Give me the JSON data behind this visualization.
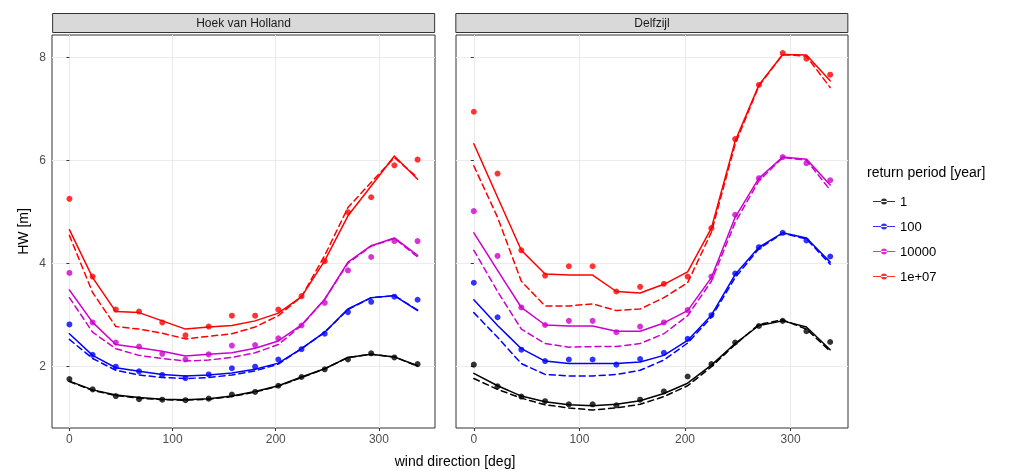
{
  "chart_data": [
    {
      "type": "line",
      "title": "Hoek van Holland",
      "legend": "right",
      "xlabel": "wind direction [deg]",
      "ylabel": "HW [m]",
      "x": [
        0,
        22.5,
        45,
        67.5,
        90,
        112.5,
        135,
        157.5,
        180,
        202.5,
        225,
        247.5,
        270,
        292.5,
        315,
        337.5
      ],
      "xlim": [
        -16.875,
        354.375
      ],
      "xticks": [
        0,
        100,
        200,
        300
      ],
      "ylim": [
        0.8,
        8.43
      ],
      "yticks": [
        2,
        4,
        6,
        8
      ],
      "grid": true,
      "series": [
        {
          "name": "1",
          "color": "#000000",
          "type": "scatter",
          "marker": "circle",
          "values": [
            1.75,
            1.55,
            1.42,
            1.36,
            1.35,
            1.34,
            1.37,
            1.45,
            1.5,
            1.62,
            1.79,
            1.94,
            2.13,
            2.25,
            2.17,
            2.04
          ]
        },
        {
          "color": "#000000",
          "marker": "none",
          "line_style": "solid",
          "values": [
            1.71,
            1.54,
            1.44,
            1.39,
            1.36,
            1.35,
            1.37,
            1.42,
            1.51,
            1.62,
            1.79,
            1.95,
            2.17,
            2.23,
            2.18,
            2.01
          ]
        },
        {
          "color": "#000000",
          "marker": "none",
          "line_style": "dashed",
          "values": [
            1.7,
            1.53,
            1.43,
            1.38,
            1.35,
            1.34,
            1.36,
            1.41,
            1.5,
            1.61,
            1.78,
            1.95,
            2.17,
            2.23,
            2.18,
            2
          ]
        },
        {
          "name": "100",
          "color": "#0000ff",
          "type": "scatter",
          "marker": "circle",
          "values": [
            2.81,
            2.22,
            1.99,
            1.9,
            1.83,
            1.77,
            1.84,
            1.96,
            1.99,
            2.13,
            2.33,
            2.63,
            3.05,
            3.25,
            3.35,
            3.29
          ]
        },
        {
          "color": "#0000ff",
          "marker": "none",
          "line_style": "solid",
          "values": [
            2.63,
            2.21,
            1.97,
            1.9,
            1.84,
            1.81,
            1.83,
            1.87,
            1.94,
            2.06,
            2.34,
            2.66,
            3.11,
            3.33,
            3.37,
            3.08
          ]
        },
        {
          "color": "#0000ff",
          "marker": "none",
          "line_style": "dashed",
          "values": [
            2.52,
            2.15,
            1.92,
            1.83,
            1.78,
            1.76,
            1.78,
            1.83,
            1.91,
            2.04,
            2.34,
            2.66,
            3.1,
            3.33,
            3.37,
            3.09
          ]
        },
        {
          "name": "10000",
          "color": "#cd00cd",
          "type": "scatter",
          "marker": "circle",
          "values": [
            3.81,
            2.85,
            2.46,
            2.38,
            2.24,
            2.13,
            2.23,
            2.4,
            2.41,
            2.54,
            2.79,
            3.23,
            3.86,
            4.12,
            4.43,
            4.43
          ]
        },
        {
          "color": "#cd00cd",
          "marker": "none",
          "line_style": "solid",
          "values": [
            3.48,
            2.85,
            2.42,
            2.36,
            2.29,
            2.2,
            2.23,
            2.26,
            2.35,
            2.49,
            2.8,
            3.3,
            4.02,
            4.34,
            4.49,
            4.15
          ]
        },
        {
          "color": "#cd00cd",
          "marker": "none",
          "line_style": "dashed",
          "values": [
            3.33,
            2.66,
            2.34,
            2.21,
            2.15,
            2.1,
            2.12,
            2.17,
            2.26,
            2.42,
            2.79,
            3.3,
            4,
            4.33,
            4.48,
            4.12
          ]
        },
        {
          "name": "1e+07",
          "color": "#ff0000",
          "type": "scatter",
          "marker": "circle",
          "values": [
            5.25,
            3.74,
            3.1,
            3.06,
            2.85,
            2.6,
            2.77,
            2.98,
            2.98,
            3.1,
            3.36,
            4.04,
            4.99,
            5.28,
            5.9,
            6.01
          ]
        },
        {
          "color": "#ff0000",
          "marker": "none",
          "line_style": "solid",
          "values": [
            4.65,
            3.72,
            3.06,
            3.04,
            2.88,
            2.72,
            2.76,
            2.79,
            2.88,
            3.03,
            3.35,
            4.05,
            4.92,
            5.5,
            6.08,
            5.63
          ]
        },
        {
          "color": "#ff0000",
          "marker": "none",
          "line_style": "dashed",
          "values": [
            4.54,
            3.43,
            2.77,
            2.72,
            2.64,
            2.53,
            2.58,
            2.63,
            2.76,
            2.98,
            3.35,
            4.15,
            5.08,
            5.57,
            6.05,
            5.66
          ]
        }
      ]
    },
    {
      "type": "line",
      "title": "Delfzijl",
      "legend": "right",
      "legend_title": "return period [year]",
      "tick_labels": "x",
      "x": [
        0,
        22.5,
        45,
        67.5,
        90,
        112.5,
        135,
        157.5,
        180,
        202.5,
        225,
        247.5,
        270,
        292.5,
        315,
        337.5
      ],
      "xlim": [
        -16.875,
        354.375
      ],
      "xticks": [
        0,
        100,
        200,
        300
      ],
      "ylim": [
        0.8,
        8.43
      ],
      "yticks": [
        2,
        4,
        6,
        8
      ],
      "grid": true,
      "series": [
        {
          "name": "1",
          "color": "#000000",
          "type": "scatter",
          "marker": "circle",
          "values": [
            2.03,
            1.61,
            1.41,
            1.32,
            1.26,
            1.26,
            1.24,
            1.35,
            1.51,
            1.8,
            2.04,
            2.46,
            2.78,
            2.88,
            2.68,
            2.47
          ]
        },
        {
          "color": "#000000",
          "marker": "none",
          "line_style": "solid",
          "values": [
            1.86,
            1.62,
            1.42,
            1.31,
            1.25,
            1.23,
            1.26,
            1.33,
            1.47,
            1.67,
            2.02,
            2.44,
            2.79,
            2.88,
            2.76,
            2.32
          ]
        },
        {
          "color": "#000000",
          "marker": "none",
          "line_style": "dashed",
          "values": [
            1.76,
            1.55,
            1.38,
            1.25,
            1.19,
            1.15,
            1.19,
            1.26,
            1.41,
            1.62,
            1.99,
            2.42,
            2.81,
            2.9,
            2.72,
            2.29
          ]
        },
        {
          "name": "100",
          "color": "#0000ff",
          "type": "scatter",
          "marker": "circle",
          "values": [
            3.62,
            2.95,
            2.32,
            2.1,
            2.13,
            2.13,
            2.03,
            2.14,
            2.26,
            2.53,
            2.99,
            3.8,
            4.31,
            4.59,
            4.44,
            4.13
          ]
        },
        {
          "color": "#0000ff",
          "marker": "none",
          "line_style": "solid",
          "values": [
            3.29,
            2.79,
            2.34,
            2.1,
            2.05,
            2.05,
            2.05,
            2.08,
            2.21,
            2.5,
            2.99,
            3.78,
            4.31,
            4.59,
            4.49,
            4.02
          ]
        },
        {
          "color": "#0000ff",
          "marker": "none",
          "line_style": "dashed",
          "values": [
            3.04,
            2.56,
            2.05,
            1.84,
            1.81,
            1.81,
            1.84,
            1.92,
            2.12,
            2.45,
            2.95,
            3.72,
            4.28,
            4.58,
            4.47,
            3.98
          ]
        },
        {
          "name": "10000",
          "color": "#cd00cd",
          "type": "scatter",
          "marker": "circle",
          "values": [
            5.01,
            4.14,
            3.14,
            2.8,
            2.88,
            2.88,
            2.66,
            2.77,
            2.85,
            3.09,
            3.74,
            4.94,
            5.65,
            6.06,
            5.94,
            5.61
          ]
        },
        {
          "color": "#cd00cd",
          "marker": "none",
          "line_style": "solid",
          "values": [
            4.59,
            3.86,
            3.14,
            2.8,
            2.78,
            2.78,
            2.68,
            2.68,
            2.84,
            3.08,
            3.72,
            4.89,
            5.65,
            6.06,
            6.02,
            5.52
          ]
        },
        {
          "color": "#cd00cd",
          "marker": "none",
          "line_style": "dashed",
          "values": [
            4.25,
            3.45,
            2.72,
            2.44,
            2.37,
            2.38,
            2.38,
            2.44,
            2.63,
            2.98,
            3.65,
            4.79,
            5.6,
            6.05,
            6,
            5.42
          ]
        },
        {
          "name": "1e+07",
          "color": "#ff0000",
          "type": "scatter",
          "marker": "circle",
          "values": [
            6.94,
            5.74,
            4.25,
            3.76,
            3.94,
            3.94,
            3.45,
            3.54,
            3.6,
            3.74,
            4.68,
            6.41,
            7.46,
            8.08,
            7.97,
            7.66
          ]
        },
        {
          "color": "#ff0000",
          "marker": "none",
          "line_style": "solid",
          "values": [
            6.32,
            5.28,
            4.25,
            3.79,
            3.77,
            3.77,
            3.45,
            3.42,
            3.59,
            3.83,
            4.68,
            6.37,
            7.46,
            8.05,
            8.04,
            7.54
          ]
        },
        {
          "color": "#ff0000",
          "marker": "none",
          "line_style": "dashed",
          "values": [
            5.89,
            4.89,
            3.65,
            3.17,
            3.17,
            3.21,
            3.08,
            3.11,
            3.33,
            3.62,
            4.6,
            6.31,
            7.44,
            8.05,
            8.02,
            7.41
          ]
        }
      ]
    }
  ]
}
